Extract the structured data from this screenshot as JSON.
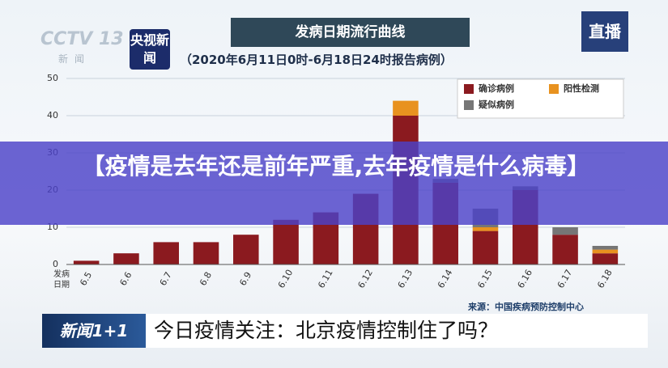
{
  "chart_data": {
    "type": "stacked_bar",
    "title": "发病日期流行曲线",
    "subtitle": "（2020年6月11日0时-6月18日24时报告病例）",
    "x_label": "发病日期",
    "source": "来源：中国疾病预防控制中心",
    "categories": [
      "6.5",
      "6.6",
      "6.7",
      "6.8",
      "6.9",
      "6.10",
      "6.11",
      "6.12",
      "6.13",
      "6.14",
      "6.15",
      "6.16",
      "6.17",
      "6.18"
    ],
    "series": [
      {
        "name": "确诊病例",
        "color": "#8b1a1f",
        "values": [
          1,
          3,
          6,
          6,
          8,
          12,
          14,
          19,
          40,
          22,
          9,
          20,
          8,
          3
        ]
      },
      {
        "name": "阳性检测",
        "color": "#e8921f",
        "values": [
          0,
          0,
          0,
          0,
          0,
          0,
          0,
          0,
          4,
          0,
          1,
          0,
          0,
          1
        ]
      },
      {
        "name": "疑似病例",
        "color": "#767676",
        "values": [
          0,
          0,
          0,
          0,
          0,
          0,
          0,
          0,
          0,
          1,
          5,
          1,
          2,
          1
        ]
      }
    ],
    "ylim": [
      0,
      50
    ],
    "yticks": [
      0,
      10,
      20,
      30,
      40,
      50
    ],
    "grid": true
  },
  "channel_logo": "CCTV 13",
  "channel_sub": "新闻",
  "news_logo": "央视新闻",
  "live_badge": "直播",
  "overlay_title": "【疫情是去年还是前年严重,去年疫情是什么病毒】",
  "program_logo": "新闻1+1",
  "ticker": "今日疫情关注：北京疫情控制住了吗？"
}
